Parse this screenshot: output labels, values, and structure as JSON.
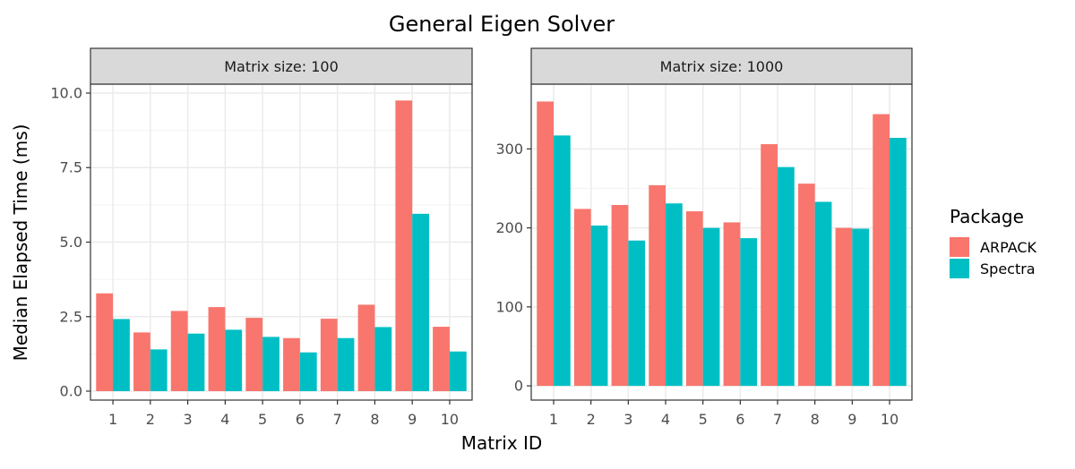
{
  "chart_data": {
    "type": "bar",
    "title": "General Eigen Solver",
    "xlabel": "Matrix ID",
    "ylabel": "Median Elapsed Time (ms)",
    "categories": [
      "1",
      "2",
      "3",
      "4",
      "5",
      "6",
      "7",
      "8",
      "9",
      "10"
    ],
    "legend": {
      "title": "Package",
      "placement": "right",
      "entries": [
        "ARPACK",
        "Spectra"
      ]
    },
    "colors": {
      "ARPACK": "#F8766D",
      "Spectra": "#00BFC4"
    },
    "grid": true,
    "panels": [
      {
        "strip": "Matrix size: 100",
        "ylim": [
          -0.3,
          10.3
        ],
        "yticks": [
          0,
          2.5,
          5,
          7.5,
          10
        ],
        "ytick_labels": [
          "0.0",
          "2.5",
          "5.0",
          "7.5",
          "10.0"
        ],
        "series": [
          {
            "name": "ARPACK",
            "values": [
              3.28,
              1.97,
              2.69,
              2.82,
              2.46,
              1.78,
              2.43,
              2.9,
              9.75,
              2.16
            ]
          },
          {
            "name": "Spectra",
            "values": [
              2.42,
              1.4,
              1.93,
              2.06,
              1.82,
              1.3,
              1.78,
              2.15,
              5.95,
              1.33
            ]
          }
        ]
      },
      {
        "strip": "Matrix size: 1000",
        "ylim": [
          -18,
          382
        ],
        "yticks": [
          0,
          100,
          200,
          300
        ],
        "ytick_labels": [
          "0",
          "100",
          "200",
          "300"
        ],
        "series": [
          {
            "name": "ARPACK",
            "values": [
              360,
              224,
              229,
              254,
              221,
              207,
              306,
              256,
              200,
              344
            ]
          },
          {
            "name": "Spectra",
            "values": [
              317,
              203,
              184,
              231,
              200,
              187,
              277,
              233,
              199,
              314
            ]
          }
        ]
      }
    ]
  }
}
